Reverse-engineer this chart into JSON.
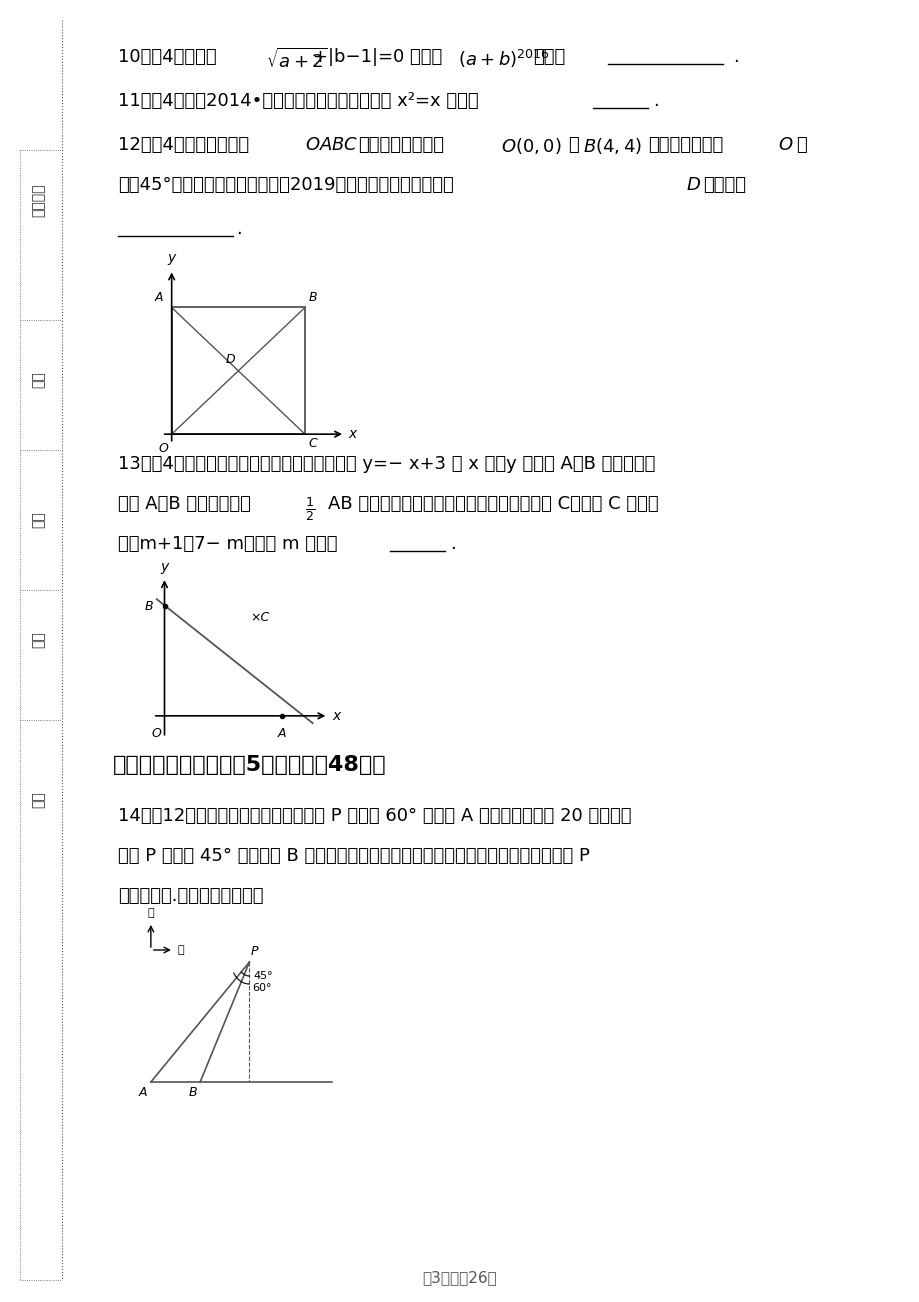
{
  "page_width": 9.2,
  "page_height": 13.02,
  "bg_color": "#ffffff",
  "text_color": "#000000",
  "title_section3": "三、解答题（本大题共5个小题，共48分）",
  "q10": "10、（4分）已知  $\\sqrt{a+2}$+$|b-1|$=0 ，那么$(a+b)^{2016}$的值为___________.",
  "q11": "11、（4分）（2014•嘉定区二模）一元二次方程 x²=x 的解为_____.",
  "q12_line1": "12、（4分）如图，菱形$OABC$的两个顶点坐标为$O(0,0)$，$B(4,4)$，若将菱形绕点$O$以",
  "q12_line2": "每秒45°的速度逆时针旋转，则第2019秒时，菱形两对角线交点$D$的坐标为",
  "q13_line1": "13、（4分）如图，在平面直角坐标系中，直线 y=− x+3 与 x 轴，y 轴交于 A、B 两点，分别",
  "q13_line2": "以点 A、B 为圆心，大于$\\frac{1}{2}$AB 长为半径作圆弧，两弧在第一象限交于点 C，若点 C 的坐标",
  "q13_line3": "为（m+1，7− m），则 m 的值是_____.",
  "q14_line1": "14、（12分）如图，一艘轮船位于灯塔 P 南偏西 60° 方向的 A 处，它向东航行 20 海里到达",
  "q14_line2": "灯塔 P 南偏西 45° 方向上的 B 处，若轮船继续沿正东方向航行，求轮船航行途中与灯塔 P",
  "q14_line3": "的最短距离.（结果保留根号）",
  "page_footer": "第3页，共26页",
  "sidebar_texts": [
    "准考证号",
    "考场",
    "姓名",
    "班级",
    "学校"
  ],
  "answer_blank": "___________",
  "answer_blank_short": "_____"
}
